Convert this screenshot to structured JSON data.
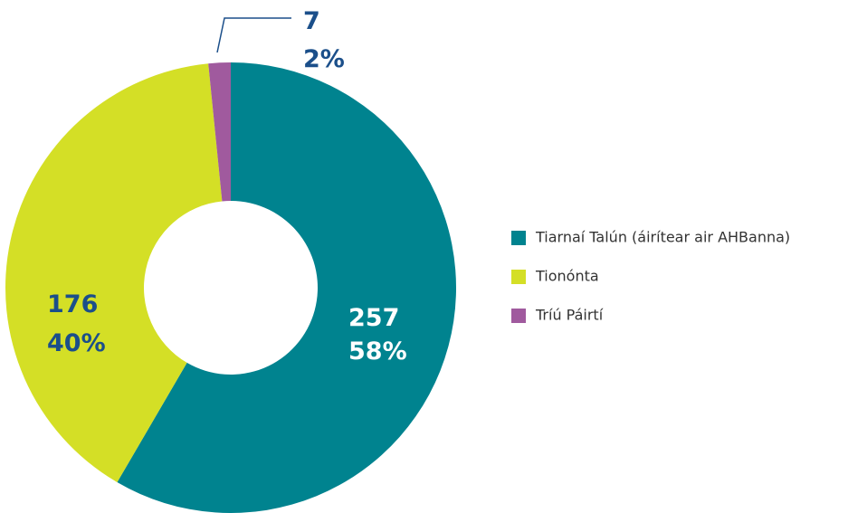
{
  "chart_data": {
    "type": "donut",
    "categories": [
      "Tiarnaí Talún (áirítear air AHBanna)",
      "Tionónta",
      "Tríú Páirtí"
    ],
    "values": [
      257,
      176,
      7
    ],
    "value_labels": [
      "257",
      "176",
      "7"
    ],
    "percent_labels": [
      "58%",
      "40%",
      "2%"
    ],
    "colors": [
      "#00838f",
      "#d4df26",
      "#a05a9e"
    ],
    "legend": "right"
  }
}
